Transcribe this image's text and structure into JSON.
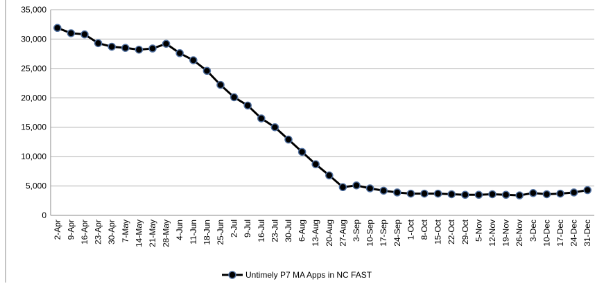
{
  "chart_data": {
    "type": "line",
    "categories": [
      "2-Apr",
      "9-Apr",
      "16-Apr",
      "23-Apr",
      "30-Apr",
      "7-May",
      "14-May",
      "21-May",
      "28-May",
      "4-Jun",
      "11-Jun",
      "18-Jun",
      "25-Jun",
      "2-Jul",
      "9-Jul",
      "16-Jul",
      "23-Jul",
      "30-Jul",
      "6-Aug",
      "13-Aug",
      "20-Aug",
      "27-Aug",
      "3-Sep",
      "10-Sep",
      "17-Sep",
      "24-Sep",
      "1-Oct",
      "8-Oct",
      "15-Oct",
      "22-Oct",
      "29-Oct",
      "5-Nov",
      "12-Nov",
      "19-Nov",
      "26-Nov",
      "3-Dec",
      "10-Dec",
      "17-Dec",
      "24-Dec",
      "31-Dec"
    ],
    "series": [
      {
        "name": "Untimely P7 MA Apps in NC FAST",
        "color": "#000000",
        "values": [
          31900,
          31000,
          30800,
          29300,
          28700,
          28500,
          28200,
          28400,
          29200,
          27600,
          26400,
          24600,
          22200,
          20100,
          18700,
          16500,
          15000,
          12900,
          10800,
          8700,
          6800,
          4800,
          5100,
          4600,
          4200,
          3900,
          3700,
          3700,
          3700,
          3600,
          3500,
          3500,
          3600,
          3500,
          3400,
          3800,
          3600,
          3700,
          3900,
          4300
        ]
      }
    ],
    "ylim": [
      0,
      35000
    ],
    "yticks": [
      0,
      {
        "value": 5000,
        "label": "5,000"
      },
      {
        "value": 10000,
        "label": "10,000"
      },
      {
        "value": 15000,
        "label": "15,000"
      },
      {
        "value": 20000,
        "label": "20,000"
      },
      {
        "value": 25000,
        "label": "25,000"
      },
      {
        "value": 30000,
        "label": "30,000"
      },
      {
        "value": 35000,
        "label": "35,000"
      }
    ],
    "grid": true,
    "legend": "bottom"
  }
}
